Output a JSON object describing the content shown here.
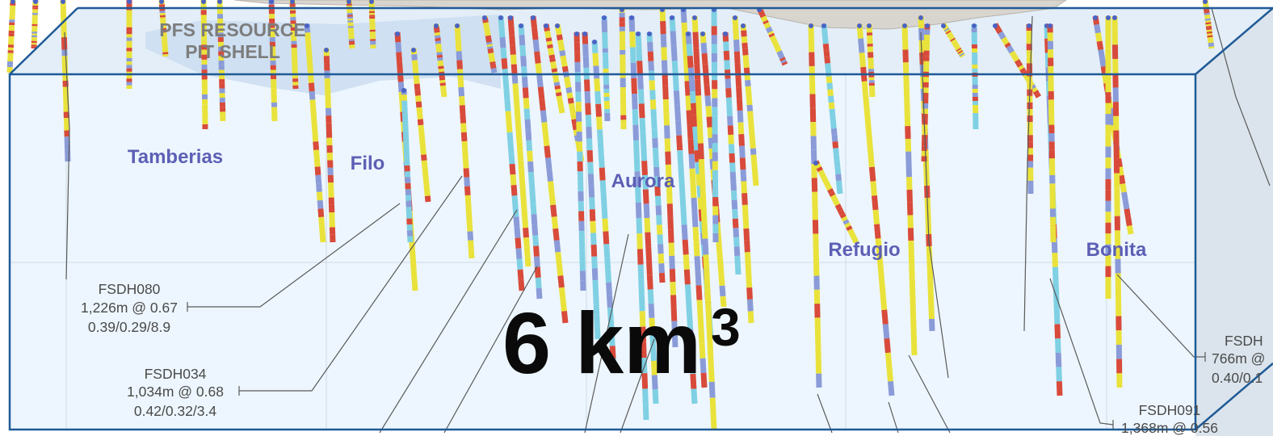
{
  "volume": {
    "value": "6 km",
    "superscript": "3"
  },
  "pit_shell_label": [
    "PFS RESOURCE",
    "PIT SHELL"
  ],
  "zones": {
    "tamberias": "Tamberias",
    "filo": "Filo",
    "aurora": "Aurora",
    "refugio": "Refugio",
    "bonita": "Bonita"
  },
  "intercepts": {
    "fsdh080": {
      "hole": "FSDH080",
      "interval": "1,226m @ 0.67",
      "grades": "0.39/0.29/8.9"
    },
    "fsdh034": {
      "hole": "FSDH034",
      "interval": "1,034m @ 0.68",
      "grades": "0.42/0.32/3.4"
    },
    "fsdh091": {
      "hole": "FSDH091",
      "interval": "1,368m @ 0.56"
    },
    "partial_right": {
      "hole": "FSDH",
      "interval": "766m @",
      "grades": "0.40/0.1"
    }
  },
  "colors": {
    "box_outline": "#1f5a96",
    "box_fill": "#eaf4fd",
    "pit_shell": "#d9d5cf",
    "zone_label": "#5d5fb5",
    "assay_yellow": "#e9e23a",
    "assay_red": "#d84a3a",
    "assay_cyan": "#7fd0e3",
    "assay_blue": "#8a9bd8"
  }
}
